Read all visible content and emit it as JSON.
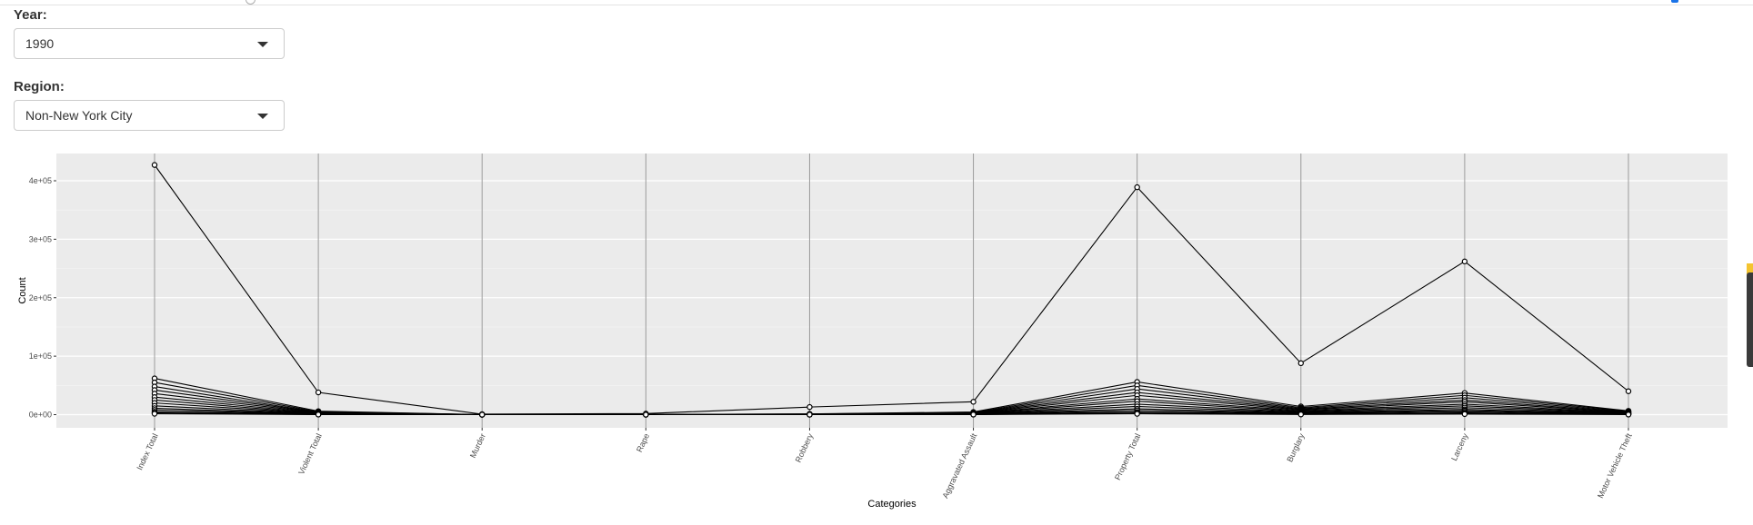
{
  "controls": {
    "year_label": "Year:",
    "year_value": "1990",
    "region_label": "Region:",
    "region_value": "Non-New York City"
  },
  "chart_data": {
    "type": "line",
    "xlabel": "Categories",
    "ylabel": "Count",
    "categories": [
      "Index Total",
      "Violent Total",
      "Murder",
      "Rape",
      "Robbery",
      "Aggravated Assault",
      "Property Total",
      "Burglary",
      "Larceny",
      "Motor Vehicle Theft"
    ],
    "y_ticks": [
      0,
      100000,
      200000,
      300000,
      400000
    ],
    "y_tick_labels": [
      "0e+00",
      "1e+05",
      "2e+05",
      "3e+05",
      "4e+05"
    ],
    "ylim": [
      -20000,
      450000
    ],
    "grid": true,
    "series": [
      {
        "values": [
          427000,
          38000,
          800,
          1800,
          13000,
          22000,
          389000,
          88000,
          262000,
          40000
        ]
      },
      {
        "values": [
          62000,
          6000,
          80,
          250,
          1200,
          4500,
          56000,
          14000,
          37000,
          6500
        ]
      },
      {
        "values": [
          55000,
          5000,
          60,
          200,
          1000,
          3700,
          50000,
          12000,
          33000,
          5800
        ]
      },
      {
        "values": [
          48000,
          4200,
          50,
          180,
          800,
          3200,
          44000,
          10500,
          29000,
          5000
        ]
      },
      {
        "values": [
          42000,
          3800,
          40,
          160,
          700,
          2900,
          38000,
          9200,
          25000,
          4300
        ]
      },
      {
        "values": [
          36000,
          3200,
          35,
          140,
          600,
          2400,
          33000,
          8000,
          22000,
          3600
        ]
      },
      {
        "values": [
          30000,
          2700,
          30,
          120,
          500,
          2000,
          27000,
          6800,
          18000,
          3000
        ]
      },
      {
        "values": [
          25000,
          2200,
          25,
          100,
          400,
          1700,
          23000,
          5600,
          15000,
          2500
        ]
      },
      {
        "values": [
          20000,
          1800,
          20,
          80,
          300,
          1400,
          18000,
          4500,
          12000,
          2000
        ]
      },
      {
        "values": [
          15000,
          1400,
          15,
          60,
          250,
          1100,
          14000,
          3500,
          9000,
          1500
        ]
      },
      {
        "values": [
          11000,
          1000,
          10,
          45,
          180,
          800,
          10000,
          2600,
          7000,
          1100
        ]
      },
      {
        "values": [
          8000,
          700,
          8,
          30,
          120,
          550,
          7300,
          1900,
          5000,
          800
        ]
      },
      {
        "values": [
          5000,
          450,
          5,
          20,
          80,
          350,
          4500,
          1200,
          3000,
          500
        ]
      },
      {
        "values": [
          3000,
          250,
          3,
          12,
          40,
          200,
          2700,
          700,
          1800,
          300
        ]
      },
      {
        "values": [
          1500,
          120,
          1,
          6,
          20,
          100,
          1400,
          350,
          900,
          150
        ]
      }
    ]
  }
}
